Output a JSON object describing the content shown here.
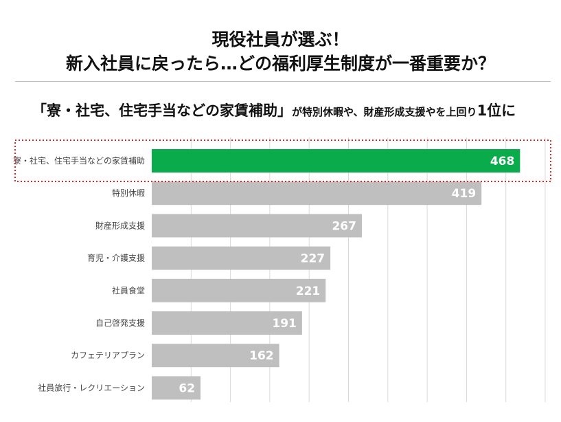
{
  "header": {
    "title_line1": "現役社員が選ぶ！",
    "title_line2": "新入社員に戻ったら…どの福利厚生制度が一番重要か？",
    "subtitle_main": "「寮・社宅、住宅手当などの家賃補助」",
    "subtitle_mid": "が特別休暇や、財産形成支援やを上回り",
    "subtitle_rank": "1位に"
  },
  "colors": {
    "highlight_bar": "#0aab4a",
    "other_bar": "#bfbfbf",
    "highlight_box": "#d9262b",
    "gridline": "#d9d9d9"
  },
  "chart_data": {
    "type": "bar",
    "orientation": "horizontal",
    "title": "新入社員に戻ったら…どの福利厚生制度が一番重要か？",
    "categories": [
      "寮・社宅、住宅手当などの家賃補助",
      "特別休暇",
      "財産形成支援",
      "育児・介護支援",
      "社員食堂",
      "自己啓発支援",
      "カフェテリアプラン",
      "社員旅行・レクリエーション"
    ],
    "values": [
      468,
      419,
      267,
      227,
      221,
      191,
      162,
      62
    ],
    "highlight_index": 0,
    "xlim": [
      0,
      500
    ],
    "grid": true,
    "data_labels": true
  }
}
